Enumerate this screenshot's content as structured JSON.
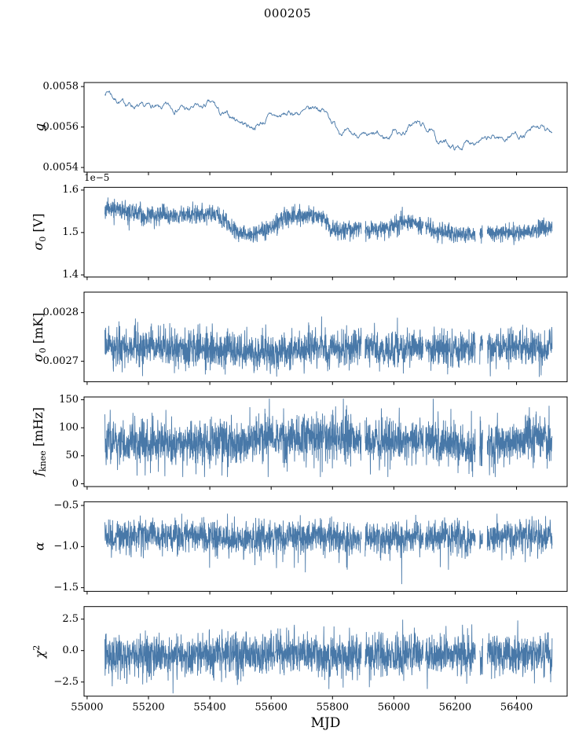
{
  "chart_data": {
    "type": "line",
    "title": "000205",
    "xlabel": "MJD",
    "line_color": "#4878a8",
    "xlim": [
      54990,
      56565
    ],
    "x_range_data": [
      55058,
      56516
    ],
    "xticks": {
      "values": [
        55000,
        55200,
        55400,
        55600,
        55800,
        56000,
        56200,
        56400
      ],
      "labels": [
        "55000",
        "55200",
        "55400",
        "55600",
        "55800",
        "56000",
        "56200",
        "56400"
      ]
    },
    "gaps": [
      [
        55894,
        55906
      ],
      [
        56096,
        56103
      ],
      [
        56266,
        56280
      ],
      [
        56290,
        56304
      ]
    ],
    "panels": [
      {
        "name": "g",
        "label": [
          {
            "t": "g",
            "style": "it"
          }
        ],
        "kind": "smooth",
        "seed": 7,
        "offset": "",
        "ylim": [
          5.377,
          5.82
        ],
        "yticks": {
          "values": [
            5.4,
            5.6,
            5.8
          ],
          "labels": [
            "0.0054",
            "0.0056",
            "0.0058"
          ]
        },
        "noise": {
          "sigma": 0.009,
          "ar": 0.86,
          "spike_prob": 0,
          "spike_amp": 0,
          "spike_dir": 0,
          "clip": [
            5.38,
            5.81
          ]
        },
        "trend": [
          [
            55058,
            5.77
          ],
          [
            55072,
            5.78
          ],
          [
            55090,
            5.74
          ],
          [
            55115,
            5.72
          ],
          [
            55140,
            5.715
          ],
          [
            55160,
            5.7
          ],
          [
            55185,
            5.69
          ],
          [
            55210,
            5.705
          ],
          [
            55235,
            5.685
          ],
          [
            55260,
            5.7
          ],
          [
            55285,
            5.69
          ],
          [
            55310,
            5.7
          ],
          [
            55330,
            5.68
          ],
          [
            55350,
            5.7
          ],
          [
            55370,
            5.69
          ],
          [
            55395,
            5.715
          ],
          [
            55415,
            5.71
          ],
          [
            55435,
            5.66
          ],
          [
            55455,
            5.655
          ],
          [
            55475,
            5.645
          ],
          [
            55495,
            5.635
          ],
          [
            55515,
            5.615
          ],
          [
            55540,
            5.6
          ],
          [
            55560,
            5.615
          ],
          [
            55580,
            5.63
          ],
          [
            55600,
            5.66
          ],
          [
            55620,
            5.65
          ],
          [
            55645,
            5.66
          ],
          [
            55670,
            5.67
          ],
          [
            55700,
            5.67
          ],
          [
            55725,
            5.68
          ],
          [
            55745,
            5.7
          ],
          [
            55765,
            5.69
          ],
          [
            55785,
            5.66
          ],
          [
            55805,
            5.62
          ],
          [
            55825,
            5.585
          ],
          [
            55845,
            5.57
          ],
          [
            55865,
            5.56
          ],
          [
            55885,
            5.565
          ],
          [
            55905,
            5.545
          ],
          [
            55925,
            5.55
          ],
          [
            55945,
            5.56
          ],
          [
            55965,
            5.545
          ],
          [
            55985,
            5.55
          ],
          [
            56005,
            5.6
          ],
          [
            56020,
            5.565
          ],
          [
            56040,
            5.58
          ],
          [
            56060,
            5.615
          ],
          [
            56080,
            5.62
          ],
          [
            56100,
            5.6
          ],
          [
            56120,
            5.58
          ],
          [
            56140,
            5.535
          ],
          [
            56160,
            5.525
          ],
          [
            56180,
            5.515
          ],
          [
            56200,
            5.495
          ],
          [
            56220,
            5.5
          ],
          [
            56240,
            5.525
          ],
          [
            56260,
            5.535
          ],
          [
            56280,
            5.54
          ],
          [
            56300,
            5.53
          ],
          [
            56320,
            5.545
          ],
          [
            56340,
            5.55
          ],
          [
            56360,
            5.54
          ],
          [
            56380,
            5.56
          ],
          [
            56400,
            5.57
          ],
          [
            56420,
            5.55
          ],
          [
            56440,
            5.57
          ],
          [
            56460,
            5.59
          ],
          [
            56480,
            5.6
          ],
          [
            56495,
            5.575
          ],
          [
            56516,
            5.58
          ]
        ]
      },
      {
        "name": "sigma0-v",
        "label": [
          {
            "t": "σ",
            "style": "it"
          },
          {
            "t": "0",
            "style": "sub"
          },
          {
            "t": " [V]",
            "style": "up"
          }
        ],
        "kind": "noisy",
        "seed": 11,
        "offset": "1e−5",
        "ylim": [
          1.3954,
          1.6065
        ],
        "yticks": {
          "values": [
            1.4,
            1.5,
            1.6
          ],
          "labels": [
            "1.4",
            "1.5",
            "1.6"
          ]
        },
        "noise": {
          "sigma": 0.0105,
          "ar": 0,
          "spike_prob": 0.02,
          "spike_amp": 0.025,
          "spike_dir": 0,
          "clip": [
            1.45,
            1.585
          ]
        },
        "trend": [
          [
            55058,
            1.555
          ],
          [
            55080,
            1.56
          ],
          [
            55100,
            1.552
          ],
          [
            55150,
            1.545
          ],
          [
            55200,
            1.54
          ],
          [
            55250,
            1.542
          ],
          [
            55300,
            1.54
          ],
          [
            55350,
            1.542
          ],
          [
            55400,
            1.545
          ],
          [
            55430,
            1.54
          ],
          [
            55460,
            1.52
          ],
          [
            55490,
            1.5
          ],
          [
            55520,
            1.498
          ],
          [
            55550,
            1.5
          ],
          [
            55580,
            1.505
          ],
          [
            55600,
            1.512
          ],
          [
            55630,
            1.53
          ],
          [
            55660,
            1.538
          ],
          [
            55700,
            1.54
          ],
          [
            55740,
            1.54
          ],
          [
            55770,
            1.535
          ],
          [
            55800,
            1.505
          ],
          [
            55830,
            1.505
          ],
          [
            55860,
            1.51
          ],
          [
            55890,
            1.508
          ],
          [
            55920,
            1.505
          ],
          [
            55950,
            1.508
          ],
          [
            55980,
            1.51
          ],
          [
            56010,
            1.52
          ],
          [
            56040,
            1.525
          ],
          [
            56070,
            1.522
          ],
          [
            56100,
            1.515
          ],
          [
            56130,
            1.505
          ],
          [
            56160,
            1.502
          ],
          [
            56190,
            1.5
          ],
          [
            56220,
            1.498
          ],
          [
            56250,
            1.495
          ],
          [
            56280,
            1.498
          ],
          [
            56310,
            1.5
          ],
          [
            56340,
            1.498
          ],
          [
            56370,
            1.5
          ],
          [
            56400,
            1.5
          ],
          [
            56430,
            1.502
          ],
          [
            56460,
            1.505
          ],
          [
            56490,
            1.51
          ],
          [
            56516,
            1.512
          ]
        ]
      },
      {
        "name": "sigma0-mk",
        "label": [
          {
            "t": "σ",
            "style": "it"
          },
          {
            "t": "0",
            "style": "sub"
          },
          {
            "t": " [mK]",
            "style": "up"
          }
        ],
        "kind": "noisy",
        "seed": 23,
        "offset": "",
        "ylim": [
          26.58,
          28.42
        ],
        "yticks": {
          "values": [
            27,
            28
          ],
          "labels": [
            "0.0027",
            "0.0028"
          ]
        },
        "noise": {
          "sigma": 0.185,
          "ar": 0,
          "spike_prob": 0.03,
          "spike_amp": 0.4,
          "spike_dir": 0,
          "clip": [
            26.68,
            28.05
          ]
        },
        "trend": [
          [
            55058,
            27.28
          ],
          [
            55300,
            27.26
          ],
          [
            55480,
            27.22
          ],
          [
            55560,
            27.14
          ],
          [
            55620,
            27.16
          ],
          [
            55700,
            27.24
          ],
          [
            55800,
            27.26
          ],
          [
            55900,
            27.27
          ],
          [
            56000,
            27.28
          ],
          [
            56100,
            27.27
          ],
          [
            56200,
            27.26
          ],
          [
            56300,
            27.28
          ],
          [
            56400,
            27.27
          ],
          [
            56516,
            27.27
          ]
        ]
      },
      {
        "name": "fknee",
        "label": [
          {
            "t": "f",
            "style": "it"
          },
          {
            "t": "knee",
            "style": "sub"
          },
          {
            "t": " [mHz]",
            "style": "up"
          }
        ],
        "kind": "noisy",
        "seed": 37,
        "offset": "",
        "ylim": [
          -5,
          155
        ],
        "yticks": {
          "values": [
            0,
            50,
            100,
            150
          ],
          "labels": [
            "0",
            "50",
            "100",
            "150"
          ]
        },
        "noise": {
          "sigma": 20,
          "ar": 0,
          "spike_prob": 0.04,
          "spike_amp": 50,
          "spike_dir": 0,
          "clip": [
            12,
            152
          ]
        },
        "trend": [
          [
            55058,
            75
          ],
          [
            55200,
            68
          ],
          [
            55350,
            75
          ],
          [
            55500,
            72
          ],
          [
            55600,
            88
          ],
          [
            55650,
            80
          ],
          [
            55800,
            82
          ],
          [
            55870,
            78
          ],
          [
            55950,
            72
          ],
          [
            56050,
            78
          ],
          [
            56150,
            75
          ],
          [
            56230,
            62
          ],
          [
            56320,
            72
          ],
          [
            56420,
            80
          ],
          [
            56516,
            78
          ]
        ]
      },
      {
        "name": "alpha",
        "label": [
          {
            "t": "α",
            "style": "it"
          }
        ],
        "kind": "noisy",
        "seed": 51,
        "offset": "",
        "ylim": [
          -1.545,
          -0.455
        ],
        "yticks": {
          "values": [
            -1.5,
            -1.0,
            -0.5
          ],
          "labels": [
            "−1.5",
            "−1.0",
            "−0.5"
          ]
        },
        "noise": {
          "sigma": 0.1,
          "ar": 0,
          "spike_prob": 0.02,
          "spike_amp": 0.35,
          "spike_dir": -1,
          "clip": [
            -1.52,
            -0.6
          ]
        },
        "trend": [
          [
            55058,
            -0.88
          ],
          [
            55300,
            -0.86
          ],
          [
            55500,
            -0.92
          ],
          [
            55700,
            -0.88
          ],
          [
            55900,
            -0.9
          ],
          [
            56100,
            -0.87
          ],
          [
            56300,
            -0.9
          ],
          [
            56516,
            -0.87
          ]
        ]
      },
      {
        "name": "chi2",
        "label": [
          {
            "t": "χ",
            "style": "it"
          },
          {
            "t": "2",
            "style": "sup"
          }
        ],
        "kind": "noisy",
        "seed": 63,
        "offset": "",
        "ylim": [
          -3.625,
          3.5
        ],
        "yticks": {
          "values": [
            -2.5,
            0.0,
            2.5
          ],
          "labels": [
            "−2.5",
            "0.0",
            "2.5"
          ]
        },
        "noise": {
          "sigma": 0.85,
          "ar": 0,
          "spike_prob": 0.02,
          "spike_amp": 1.6,
          "spike_dir": 0,
          "clip": [
            -3.4,
            2.7
          ]
        },
        "trend": [
          [
            55058,
            -0.35
          ],
          [
            55500,
            -0.25
          ],
          [
            55800,
            -0.4
          ],
          [
            56100,
            -0.3
          ],
          [
            56516,
            -0.3
          ]
        ]
      }
    ]
  }
}
